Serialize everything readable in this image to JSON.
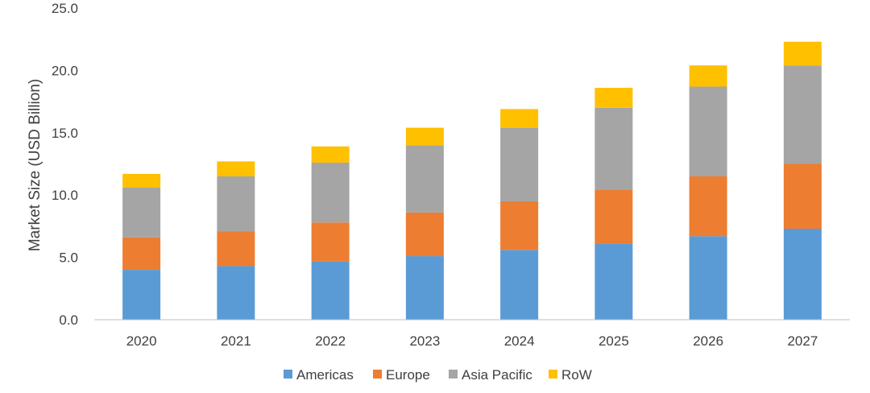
{
  "chart_data": {
    "type": "bar",
    "stacked": true,
    "categories": [
      "2020",
      "2021",
      "2022",
      "2023",
      "2024",
      "2025",
      "2026",
      "2027"
    ],
    "series": [
      {
        "name": "Americas",
        "color": "#5B9BD5",
        "values": [
          4.0,
          4.3,
          4.7,
          5.1,
          5.6,
          6.1,
          6.7,
          7.3
        ]
      },
      {
        "name": "Europe",
        "color": "#ED7D31",
        "values": [
          2.6,
          2.8,
          3.1,
          3.5,
          3.9,
          4.3,
          4.8,
          5.2
        ]
      },
      {
        "name": "Asia Pacific",
        "color": "#A5A5A5",
        "values": [
          4.0,
          4.4,
          4.8,
          5.4,
          5.9,
          6.6,
          7.2,
          7.9
        ]
      },
      {
        "name": "RoW",
        "color": "#FFC000",
        "values": [
          1.1,
          1.2,
          1.3,
          1.4,
          1.5,
          1.6,
          1.7,
          1.9
        ]
      }
    ],
    "title": "",
    "xlabel": "",
    "ylabel": "Market Size (USD Billion)",
    "ylim": [
      0,
      25
    ],
    "yticks": [
      "0.0",
      "5.0",
      "10.0",
      "15.0",
      "20.0",
      "25.0"
    ],
    "grid": false,
    "legend_position": "bottom"
  }
}
